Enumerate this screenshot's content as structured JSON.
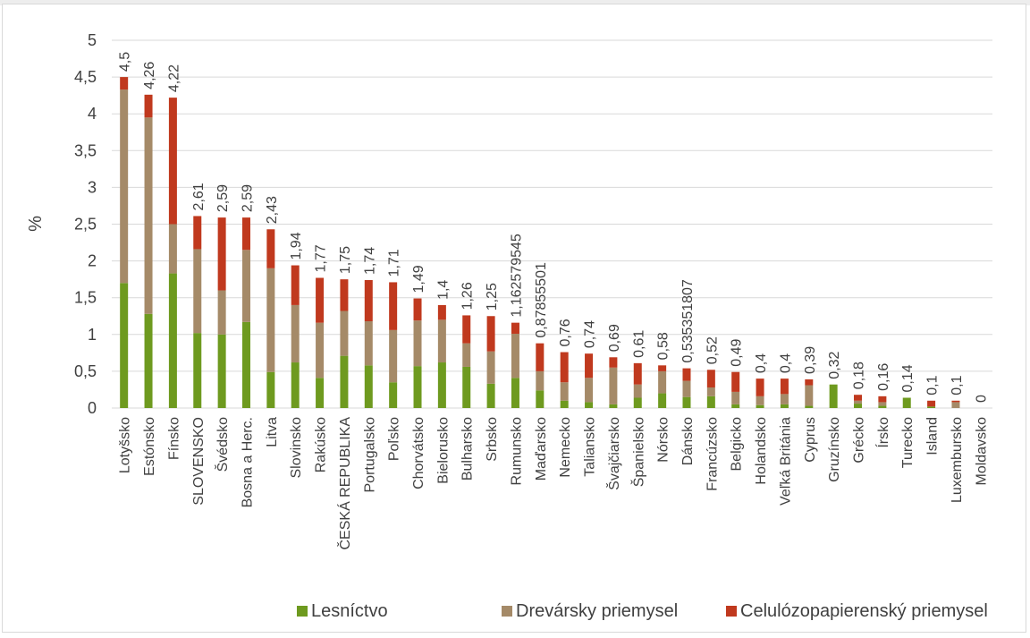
{
  "chart_data": {
    "type": "bar",
    "stacked": true,
    "title": "",
    "xlabel": "",
    "ylabel": "%",
    "ylim": [
      0,
      5
    ],
    "yticks": [
      "0",
      "0,5",
      "1",
      "1,5",
      "2",
      "2,5",
      "3",
      "3,5",
      "4",
      "4,5",
      "5"
    ],
    "grid": true,
    "legend_position": "bottom",
    "categories": [
      "Lotyšsko",
      "Estónsko",
      "Fínsko",
      "SLOVENSKO",
      "Švédsko",
      "Bosna a Herc.",
      "Litva",
      "Slovinsko",
      "Rakúsko",
      "ČESKÁ REPUBLIKA",
      "Portugalsko",
      "Poľsko",
      "Chorvátsko",
      "Bielorusko",
      "Bulharsko",
      "Srbsko",
      "Rumunsko",
      "Maďarsko",
      "Nemecko",
      "Taliansko",
      "Švajčiarsko",
      "Španielsko",
      "Nórsko",
      "Dánsko",
      "Francúzsko",
      "Belgicko",
      "Holandsko",
      "Veľká Británia",
      "Cyprus",
      "Gruzínsko",
      "Grécko",
      "Írsko",
      "Turecko",
      "Island",
      "Luxembursko",
      "Moldavsko"
    ],
    "totals_labels": [
      "4,5",
      "4,26",
      "4,22",
      "2,61",
      "2,59",
      "2,59",
      "2,43",
      "1,94",
      "1,77",
      "1,75",
      "1,74",
      "1,71",
      "1,49",
      "1,4",
      "1,26",
      "1,25",
      "1,162579545",
      "0,87855501",
      "0,76",
      "0,74",
      "0,69",
      "0,61",
      "0,58",
      "0,535351807",
      "0,52",
      "0,49",
      "0,4",
      "0,4",
      "0,39",
      "0,32",
      "0,18",
      "0,16",
      "0,14",
      "0,1",
      "0,1",
      "0"
    ],
    "series": [
      {
        "name": "Lesníctvo",
        "color": "#6e9a1f",
        "values": [
          1.7,
          1.28,
          1.83,
          1.02,
          1.0,
          1.17,
          0.49,
          0.62,
          0.41,
          0.71,
          0.58,
          0.35,
          0.57,
          0.62,
          0.56,
          0.33,
          0.41,
          0.24,
          0.1,
          0.08,
          0.05,
          0.14,
          0.2,
          0.15,
          0.16,
          0.05,
          0.04,
          0.05,
          0.03,
          0.32,
          0.06,
          0.03,
          0.14,
          0.02,
          0.0,
          0.0
        ]
      },
      {
        "name": "Drevársky priemysel",
        "color": "#a58a68",
        "values": [
          2.63,
          2.67,
          0.67,
          1.14,
          0.6,
          0.98,
          1.41,
          0.78,
          0.75,
          0.61,
          0.6,
          0.71,
          0.62,
          0.58,
          0.32,
          0.44,
          0.6,
          0.26,
          0.25,
          0.33,
          0.5,
          0.18,
          0.3,
          0.22,
          0.12,
          0.17,
          0.12,
          0.14,
          0.28,
          0.0,
          0.04,
          0.05,
          0.0,
          0.0,
          0.08,
          0.0
        ]
      },
      {
        "name": "Celulózopapierenský priemysel",
        "color": "#c0391e",
        "values": [
          0.17,
          0.31,
          1.72,
          0.45,
          0.99,
          0.44,
          0.53,
          0.54,
          0.61,
          0.43,
          0.56,
          0.65,
          0.3,
          0.2,
          0.38,
          0.48,
          0.15,
          0.38,
          0.41,
          0.33,
          0.14,
          0.29,
          0.08,
          0.17,
          0.24,
          0.27,
          0.24,
          0.21,
          0.08,
          0.0,
          0.08,
          0.08,
          0.0,
          0.08,
          0.02,
          0.0
        ]
      }
    ]
  }
}
